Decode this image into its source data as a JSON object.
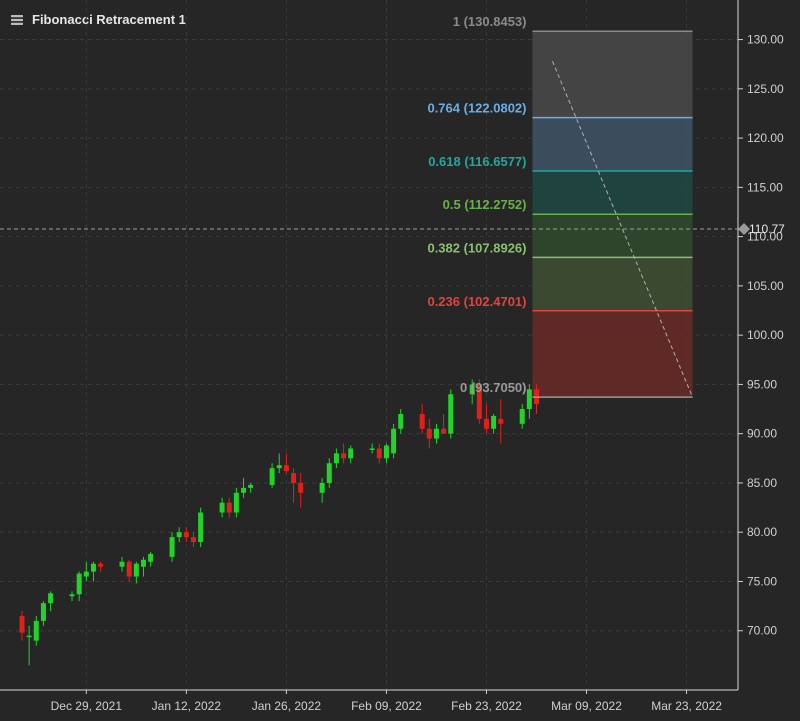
{
  "header": {
    "title": "Fibonacci Retracement 1",
    "icon": "layers-icon"
  },
  "colors": {
    "background": "#262626",
    "bull": "#22d32a",
    "bear": "#e0201b",
    "grid": "#3a3a3a",
    "axis_text": "#d0d0d0",
    "crosshair": "#a0a0a0",
    "price_marker": "#9a9a9a"
  },
  "chart_data": {
    "type": "candlestick",
    "y_axis": {
      "ticks": [
        "70.00",
        "75.00",
        "80.00",
        "85.00",
        "90.00",
        "95.00",
        "100.00",
        "105.00",
        "110.00",
        "115.00",
        "120.00",
        "125.00",
        "130.00"
      ],
      "range": [
        65,
        133
      ]
    },
    "x_axis": {
      "ticks": [
        "Dec 29, 2021",
        "Jan 12, 2022",
        "Jan 26, 2022",
        "Feb 09, 2022",
        "Feb 23, 2022",
        "Mar 09, 2022",
        "Mar 23, 2022"
      ],
      "tick_dates": [
        "2021-12-29",
        "2022-01-12",
        "2022-01-26",
        "2022-02-09",
        "2022-02-23",
        "2022-03-09",
        "2022-03-23"
      ],
      "range": [
        "2021-12-20",
        "2022-03-26"
      ]
    },
    "current_price": {
      "value": 110.77,
      "label": "110.77"
    },
    "fibonacci": {
      "name": "Fibonacci Retracement 1",
      "start_date": "2022-03-02",
      "end_date": "2022-03-23",
      "levels": [
        {
          "label": "1 (130.8453)",
          "value": 130.8453,
          "color": "#8a8a8a",
          "fill": "#4a4a4a"
        },
        {
          "label": "0.764 (122.0802)",
          "value": 122.0802,
          "color": "#6aaee8",
          "fill": "#3f5566"
        },
        {
          "label": "0.618 (116.6577)",
          "value": 116.6577,
          "color": "#1fa8a0",
          "fill": "#1f4a45"
        },
        {
          "label": "0.5 (112.2752)",
          "value": 112.2752,
          "color": "#6ab04a",
          "fill": "#304a2d"
        },
        {
          "label": "0.382 (107.8926)",
          "value": 107.8926,
          "color": "#8ac070",
          "fill": "#3f5034"
        },
        {
          "label": "0.236 (102.4701)",
          "value": 102.4701,
          "color": "#e0443e",
          "fill": "#6a2a26"
        },
        {
          "label": "0 (93.7050)",
          "value": 93.705,
          "color": "#9a9a9a",
          "fill": null
        }
      ]
    },
    "candles": [
      {
        "date": "2021-12-20",
        "open": 71.5,
        "high": 72.0,
        "low": 69.0,
        "close": 69.8
      },
      {
        "date": "2021-12-21",
        "open": 69.5,
        "high": 70.5,
        "low": 66.5,
        "close": 69.5
      },
      {
        "date": "2021-12-22",
        "open": 69.0,
        "high": 71.5,
        "low": 68.5,
        "close": 71.0
      },
      {
        "date": "2021-12-23",
        "open": 71.0,
        "high": 73.0,
        "low": 70.5,
        "close": 72.8
      },
      {
        "date": "2021-12-24",
        "open": 72.8,
        "high": 74.0,
        "low": 72.0,
        "close": 73.8
      },
      {
        "date": "2021-12-27",
        "open": 73.5,
        "high": 74.0,
        "low": 73.0,
        "close": 73.7
      },
      {
        "date": "2021-12-28",
        "open": 73.7,
        "high": 76.0,
        "low": 73.0,
        "close": 75.8
      },
      {
        "date": "2021-12-29",
        "open": 75.5,
        "high": 77.0,
        "low": 75.0,
        "close": 76.0
      },
      {
        "date": "2021-12-30",
        "open": 76.0,
        "high": 77.0,
        "low": 75.0,
        "close": 76.8
      },
      {
        "date": "2021-12-31",
        "open": 76.8,
        "high": 77.0,
        "low": 76.0,
        "close": 76.5
      },
      {
        "date": "2022-01-03",
        "open": 76.5,
        "high": 77.5,
        "low": 76.0,
        "close": 77.0
      },
      {
        "date": "2022-01-04",
        "open": 77.0,
        "high": 77.2,
        "low": 75.0,
        "close": 75.5
      },
      {
        "date": "2022-01-05",
        "open": 75.5,
        "high": 77.0,
        "low": 74.8,
        "close": 76.8
      },
      {
        "date": "2022-01-06",
        "open": 76.5,
        "high": 77.5,
        "low": 75.5,
        "close": 77.2
      },
      {
        "date": "2022-01-07",
        "open": 77.0,
        "high": 78.0,
        "low": 76.5,
        "close": 77.8
      },
      {
        "date": "2022-01-10",
        "open": 77.5,
        "high": 80.0,
        "low": 77.0,
        "close": 79.5
      },
      {
        "date": "2022-01-11",
        "open": 79.5,
        "high": 80.5,
        "low": 79.0,
        "close": 80.0
      },
      {
        "date": "2022-01-12",
        "open": 80.0,
        "high": 80.5,
        "low": 79.0,
        "close": 79.5
      },
      {
        "date": "2022-01-13",
        "open": 79.5,
        "high": 80.0,
        "low": 78.5,
        "close": 79.0
      },
      {
        "date": "2022-01-14",
        "open": 79.0,
        "high": 82.5,
        "low": 78.5,
        "close": 82.0
      },
      {
        "date": "2022-01-17",
        "open": 82.0,
        "high": 83.5,
        "low": 81.5,
        "close": 83.0
      },
      {
        "date": "2022-01-18",
        "open": 83.0,
        "high": 83.5,
        "low": 81.5,
        "close": 82.0
      },
      {
        "date": "2022-01-19",
        "open": 82.0,
        "high": 84.5,
        "low": 81.5,
        "close": 84.0
      },
      {
        "date": "2022-01-20",
        "open": 84.0,
        "high": 85.5,
        "low": 83.5,
        "close": 84.5
      },
      {
        "date": "2022-01-21",
        "open": 84.5,
        "high": 85.0,
        "low": 84.0,
        "close": 84.8
      },
      {
        "date": "2022-01-24",
        "open": 84.8,
        "high": 87.0,
        "low": 84.5,
        "close": 86.5
      },
      {
        "date": "2022-01-25",
        "open": 86.5,
        "high": 88.0,
        "low": 86.0,
        "close": 86.8
      },
      {
        "date": "2022-01-26",
        "open": 86.8,
        "high": 88.0,
        "low": 86.0,
        "close": 86.2
      },
      {
        "date": "2022-01-27",
        "open": 86.0,
        "high": 86.5,
        "low": 83.0,
        "close": 85.0
      },
      {
        "date": "2022-01-28",
        "open": 85.0,
        "high": 86.0,
        "low": 82.5,
        "close": 84.0
      },
      {
        "date": "2022-01-31",
        "open": 84.0,
        "high": 85.5,
        "low": 83.0,
        "close": 85.0
      },
      {
        "date": "2022-02-01",
        "open": 85.0,
        "high": 87.5,
        "low": 84.5,
        "close": 87.0
      },
      {
        "date": "2022-02-02",
        "open": 87.0,
        "high": 88.5,
        "low": 86.5,
        "close": 88.0
      },
      {
        "date": "2022-02-03",
        "open": 88.0,
        "high": 89.0,
        "low": 87.0,
        "close": 87.5
      },
      {
        "date": "2022-02-04",
        "open": 87.5,
        "high": 88.8,
        "low": 87.0,
        "close": 88.5
      },
      {
        "date": "2022-02-07",
        "open": 88.5,
        "high": 89.0,
        "low": 88.0,
        "close": 88.5
      },
      {
        "date": "2022-02-08",
        "open": 88.5,
        "high": 89.0,
        "low": 87.0,
        "close": 87.5
      },
      {
        "date": "2022-02-09",
        "open": 87.5,
        "high": 89.0,
        "low": 87.0,
        "close": 88.8
      },
      {
        "date": "2022-02-10",
        "open": 88.0,
        "high": 91.0,
        "low": 87.5,
        "close": 90.5
      },
      {
        "date": "2022-02-11",
        "open": 90.5,
        "high": 92.5,
        "low": 90.0,
        "close": 92.0
      },
      {
        "date": "2022-02-14",
        "open": 92.0,
        "high": 93.0,
        "low": 90.0,
        "close": 90.5
      },
      {
        "date": "2022-02-15",
        "open": 90.5,
        "high": 91.5,
        "low": 88.5,
        "close": 89.5
      },
      {
        "date": "2022-02-16",
        "open": 89.5,
        "high": 91.0,
        "low": 89.0,
        "close": 90.5
      },
      {
        "date": "2022-02-17",
        "open": 90.5,
        "high": 92.0,
        "low": 90.0,
        "close": 90.0
      },
      {
        "date": "2022-02-18",
        "open": 90.0,
        "high": 94.5,
        "low": 89.5,
        "close": 94.0
      },
      {
        "date": "2022-02-21",
        "open": 94.0,
        "high": 95.5,
        "low": 93.0,
        "close": 95.0
      },
      {
        "date": "2022-02-22",
        "open": 95.0,
        "high": 95.5,
        "low": 91.0,
        "close": 91.5
      },
      {
        "date": "2022-02-23",
        "open": 91.5,
        "high": 93.0,
        "low": 90.0,
        "close": 90.5
      },
      {
        "date": "2022-02-24",
        "open": 90.5,
        "high": 92.0,
        "low": 90.0,
        "close": 91.8
      },
      {
        "date": "2022-02-25",
        "open": 91.5,
        "high": 93.5,
        "low": 89.0,
        "close": 91.0
      },
      {
        "date": "2022-02-28",
        "open": 91.0,
        "high": 93.0,
        "low": 90.5,
        "close": 92.5
      },
      {
        "date": "2022-03-01",
        "open": 92.5,
        "high": 95.0,
        "low": 91.5,
        "close": 94.5
      },
      {
        "date": "2022-03-02",
        "open": 94.5,
        "high": 95.0,
        "low": 92.0,
        "close": 93.0
      }
    ]
  }
}
